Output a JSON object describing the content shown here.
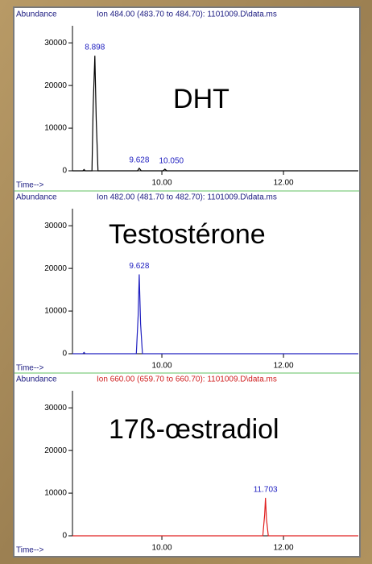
{
  "chart_data": [
    {
      "type": "line",
      "title": "Ion 484.00 (483.70 to 484.70): 1101009.D\\data.ms",
      "title_color": "#1a1a80",
      "ylabel": "Abundance",
      "xlabel": "Time-->",
      "annotation": "DHT",
      "x": [
        8.53,
        8.7,
        8.72,
        8.74,
        8.85,
        8.87,
        8.898,
        8.92,
        8.95,
        9.6,
        9.628,
        9.66,
        10.02,
        10.05,
        10.08,
        13.23
      ],
      "values": [
        0,
        0,
        300,
        0,
        0,
        15000,
        27000,
        12000,
        0,
        0,
        600,
        0,
        0,
        400,
        0,
        0
      ],
      "color": "#000000",
      "peak_labels": [
        8.898,
        9.628,
        {
          "value": 10.05,
          "label": "10.050"
        }
      ],
      "xlim": [
        8.53,
        13.23
      ],
      "xticks": [
        {
          "value": 10,
          "label": "10.00"
        },
        {
          "value": 12,
          "label": "12.00"
        }
      ],
      "ylim": [
        0,
        34000
      ],
      "yticks": [
        0,
        10000,
        20000,
        30000
      ]
    },
    {
      "type": "line",
      "title": "Ion 482.00 (481.70 to 482.70): 1101009.D\\data.ms",
      "title_color": "#1a1a80",
      "ylabel": "Abundance",
      "xlabel": "Time-->",
      "annotation": "Testostérone",
      "x": [
        8.53,
        8.7,
        8.72,
        8.74,
        9.58,
        9.61,
        9.628,
        9.65,
        9.68,
        13.23
      ],
      "values": [
        0,
        0,
        300,
        0,
        0,
        9000,
        18600,
        7000,
        0,
        0
      ],
      "color": "#2020c0",
      "peak_labels": [
        9.628
      ],
      "xlim": [
        8.53,
        13.23
      ],
      "xticks": [
        {
          "value": 10,
          "label": "10.00"
        },
        {
          "value": 12,
          "label": "12.00"
        }
      ],
      "ylim": [
        0,
        34000
      ],
      "yticks": [
        0,
        10000,
        20000,
        30000
      ]
    },
    {
      "type": "line",
      "title": "Ion 660.00 (659.70 to 660.70): 1101009.D\\data.ms",
      "title_color": "#d02020",
      "ylabel": "Abundance",
      "xlabel": "Time-->",
      "annotation": "17ß-œstradiol",
      "x": [
        8.53,
        11.66,
        11.69,
        11.703,
        11.72,
        11.75,
        13.23
      ],
      "values": [
        0,
        0,
        5000,
        8900,
        4000,
        0,
        0
      ],
      "color": "#e02020",
      "peak_labels": [
        11.703
      ],
      "xlim": [
        8.53,
        13.23
      ],
      "xticks": [
        {
          "value": 10,
          "label": "10.00"
        },
        {
          "value": 12,
          "label": "12.00"
        }
      ],
      "ylim": [
        0,
        34000
      ],
      "yticks": [
        0,
        10000,
        20000,
        30000
      ]
    }
  ]
}
